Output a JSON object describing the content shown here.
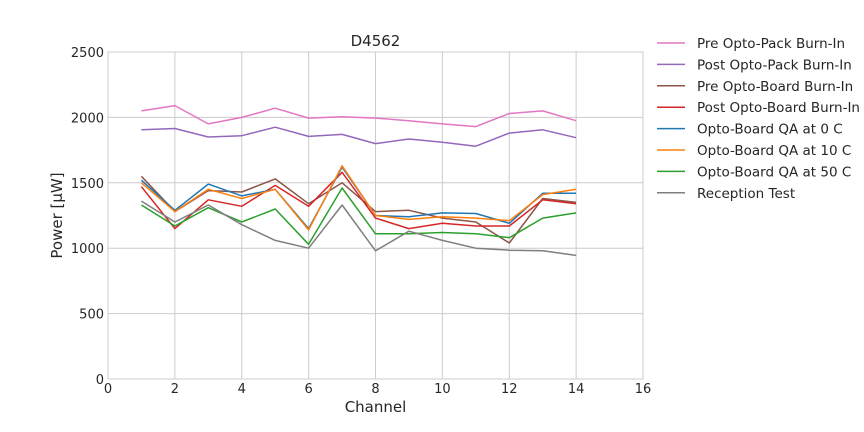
{
  "chart_data": {
    "type": "line",
    "title": "D4562",
    "xlabel": "Channel",
    "ylabel": "Power [µW]",
    "xlim": [
      0,
      16
    ],
    "ylim": [
      0,
      2500
    ],
    "x_ticks": [
      0,
      2,
      4,
      6,
      8,
      10,
      12,
      14,
      16
    ],
    "y_ticks": [
      0,
      500,
      1000,
      1500,
      2000,
      2500
    ],
    "grid": true,
    "legend_position": "outside-right",
    "x": [
      1,
      2,
      3,
      4,
      5,
      6,
      7,
      8,
      9,
      10,
      11,
      12,
      13,
      14
    ],
    "series": [
      {
        "name": "Pre Opto-Pack Burn-In",
        "color": "#e377c2",
        "values": [
          2050,
          2090,
          1950,
          2000,
          2070,
          1995,
          2005,
          1995,
          1975,
          1950,
          1930,
          2030,
          2050,
          1975
        ]
      },
      {
        "name": "Post Opto-Pack Burn-In",
        "color": "#9467bd",
        "values": [
          1905,
          1915,
          1850,
          1860,
          1925,
          1855,
          1870,
          1800,
          1835,
          1810,
          1780,
          1880,
          1905,
          1845
        ]
      },
      {
        "name": "Pre Opto-Board Burn-In",
        "color": "#8c564b",
        "values": [
          1550,
          1280,
          1440,
          1430,
          1530,
          1340,
          1500,
          1280,
          1290,
          1230,
          1200,
          1040,
          1380,
          1350
        ]
      },
      {
        "name": "Post Opto-Board Burn-In",
        "color": "#d62728",
        "values": [
          1470,
          1150,
          1370,
          1320,
          1480,
          1320,
          1580,
          1230,
          1150,
          1190,
          1170,
          1170,
          1370,
          1340
        ]
      },
      {
        "name": "Opto-Board QA at 0 C",
        "color": "#1f77b4",
        "values": [
          1520,
          1290,
          1490,
          1400,
          1450,
          1150,
          1620,
          1250,
          1240,
          1270,
          1265,
          1190,
          1420,
          1420
        ]
      },
      {
        "name": "Opto-Board QA at 10 C",
        "color": "#ff7f0e",
        "values": [
          1500,
          1280,
          1450,
          1380,
          1450,
          1140,
          1630,
          1250,
          1220,
          1240,
          1230,
          1210,
          1410,
          1450
        ]
      },
      {
        "name": "Opto-Board QA at 50 C",
        "color": "#2ca02c",
        "values": [
          1330,
          1170,
          1310,
          1200,
          1300,
          1030,
          1460,
          1110,
          1110,
          1120,
          1110,
          1080,
          1230,
          1270
        ]
      },
      {
        "name": "Reception Test",
        "color": "#7f7f7f",
        "values": [
          1360,
          1200,
          1330,
          1180,
          1060,
          1000,
          1330,
          980,
          1130,
          1060,
          1000,
          985,
          980,
          945
        ]
      }
    ]
  }
}
